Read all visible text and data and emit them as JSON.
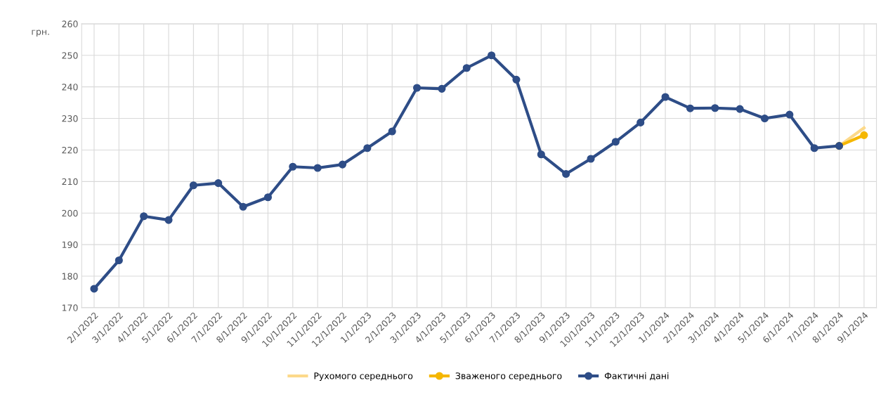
{
  "chart_data": {
    "type": "line",
    "ylabel": "грн.",
    "categories": [
      "2/1/2022",
      "3/1/2022",
      "4/1/2022",
      "5/1/2022",
      "6/1/2022",
      "7/1/2022",
      "8/1/2022",
      "9/1/2022",
      "10/1/2022",
      "11/1/2022",
      "12/1/2022",
      "1/1/2023",
      "2/1/2023",
      "3/1/2023",
      "4/1/2023",
      "5/1/2023",
      "6/1/2023",
      "7/1/2023",
      "8/1/2023",
      "9/1/2023",
      "10/1/2023",
      "11/1/2023",
      "12/1/2023",
      "1/1/2024",
      "2/1/2024",
      "3/1/2024",
      "4/1/2024",
      "5/1/2024",
      "6/1/2024",
      "7/1/2024",
      "8/1/2024",
      "9/1/2024"
    ],
    "series": [
      {
        "name": "Рухомого середнього",
        "color": "#fcd98a",
        "marker": "none",
        "values": [
          null,
          null,
          null,
          null,
          null,
          null,
          null,
          null,
          null,
          null,
          null,
          null,
          null,
          null,
          null,
          null,
          null,
          null,
          null,
          null,
          null,
          null,
          null,
          null,
          null,
          null,
          null,
          null,
          null,
          null,
          221.3,
          227
        ]
      },
      {
        "name": "Зваженого середнього",
        "color": "#f5b700",
        "marker": "circle",
        "values": [
          null,
          null,
          null,
          null,
          null,
          null,
          null,
          null,
          null,
          null,
          null,
          null,
          null,
          null,
          null,
          null,
          null,
          null,
          null,
          null,
          null,
          null,
          null,
          null,
          null,
          null,
          null,
          null,
          null,
          null,
          221.3,
          224.7
        ]
      },
      {
        "name": "Фактичні дані",
        "color": "#2e4d87",
        "marker": "circle",
        "values": [
          176,
          185,
          199,
          197.8,
          208.8,
          209.5,
          202,
          205,
          214.7,
          214.3,
          215.4,
          220.6,
          225.9,
          239.7,
          239.4,
          246,
          250,
          242.3,
          218.6,
          212.4,
          217.2,
          222.6,
          228.7,
          236.8,
          233.2,
          233.3,
          233,
          230,
          231.2,
          220.6,
          221.3,
          null
        ]
      }
    ],
    "ylim": [
      170,
      260
    ],
    "yticks": [
      170,
      180,
      190,
      200,
      210,
      220,
      230,
      240,
      250,
      260
    ],
    "grid": true,
    "legend": "bottom"
  }
}
